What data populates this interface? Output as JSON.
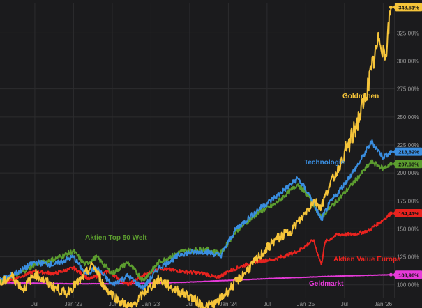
{
  "chart_data": {
    "type": "line",
    "xlabel": "",
    "ylabel": "",
    "ylim": [
      88,
      352
    ],
    "y_ticks": [
      "100,00%",
      "125,00%",
      "150,00%",
      "175,00%",
      "200,00%",
      "225,00%",
      "250,00%",
      "275,00%",
      "300,00%",
      "325,00%"
    ],
    "y_tick_values": [
      100,
      125,
      150,
      175,
      200,
      225,
      250,
      275,
      300,
      325
    ],
    "x_ticks": [
      "Jul",
      "Jan '22",
      "Jul",
      "Jan '23",
      "Jul",
      "Jan '24",
      "Jul",
      "Jan '25",
      "Jul",
      "Jan '26"
    ],
    "x_tick_positions": [
      2021.5,
      2022.0,
      2022.5,
      2023.0,
      2023.5,
      2024.0,
      2024.5,
      2025.0,
      2025.5,
      2026.0
    ],
    "x_range": [
      2021.05,
      2026.15
    ],
    "grid": true,
    "series": [
      {
        "name": "Geldmarkt",
        "color": "#e53ad8",
        "end_label": "108,96%",
        "x": [
          2021.05,
          2021.5,
          2022.0,
          2022.5,
          2023.0,
          2023.5,
          2024.0,
          2024.5,
          2025.0,
          2025.5,
          2026.1
        ],
        "values": [
          102,
          101.5,
          101,
          101,
          101.5,
          102.5,
          104,
          105.5,
          106.8,
          108,
          109
        ]
      },
      {
        "name": "Aktien Value Europa",
        "color": "#e8231f",
        "end_label": "164,41%",
        "x": [
          2021.05,
          2021.3,
          2021.5,
          2021.75,
          2022.0,
          2022.2,
          2022.45,
          2022.7,
          2022.9,
          2023.1,
          2023.4,
          2023.7,
          2023.85,
          2024.0,
          2024.3,
          2024.6,
          2024.9,
          2025.1,
          2025.2,
          2025.25,
          2025.4,
          2025.6,
          2025.8,
          2026.0,
          2026.1
        ],
        "values": [
          102,
          107,
          112,
          110,
          115,
          105,
          112,
          100,
          108,
          115,
          112,
          110,
          106,
          112,
          120,
          123,
          130,
          140,
          118,
          138,
          145,
          145,
          148,
          158,
          164
        ]
      },
      {
        "name": "Aktien Top 50 Welt",
        "color": "#5c9d2f",
        "end_label": "207,63%",
        "x": [
          2021.05,
          2021.3,
          2021.5,
          2021.75,
          2022.0,
          2022.15,
          2022.3,
          2022.5,
          2022.7,
          2022.9,
          2023.1,
          2023.4,
          2023.7,
          2023.9,
          2024.1,
          2024.4,
          2024.6,
          2024.9,
          2025.05,
          2025.2,
          2025.3,
          2025.5,
          2025.7,
          2025.85,
          2026.0,
          2026.1
        ],
        "values": [
          103,
          110,
          118,
          123,
          130,
          118,
          125,
          110,
          120,
          104,
          120,
          130,
          132,
          128,
          148,
          165,
          172,
          190,
          178,
          160,
          168,
          182,
          198,
          210,
          204,
          208
        ]
      },
      {
        "name": "Technologie",
        "color": "#3a8ee0",
        "end_label": "218,82%",
        "x": [
          2021.05,
          2021.3,
          2021.5,
          2021.75,
          2022.0,
          2022.15,
          2022.3,
          2022.5,
          2022.7,
          2022.9,
          2023.1,
          2023.4,
          2023.7,
          2023.9,
          2024.1,
          2024.4,
          2024.6,
          2024.9,
          2025.05,
          2025.2,
          2025.3,
          2025.5,
          2025.7,
          2025.85,
          2026.0,
          2026.1
        ],
        "values": [
          104,
          112,
          120,
          118,
          125,
          110,
          115,
          100,
          108,
          97,
          115,
          128,
          130,
          126,
          150,
          168,
          178,
          195,
          180,
          158,
          172,
          190,
          210,
          228,
          214,
          219
        ]
      },
      {
        "name": "Goldminen",
        "color": "#f5c43a",
        "end_label": "348,61%",
        "x": [
          2021.05,
          2021.2,
          2021.35,
          2021.5,
          2021.7,
          2021.9,
          2022.1,
          2022.25,
          2022.4,
          2022.6,
          2022.75,
          2022.9,
          2023.1,
          2023.3,
          2023.5,
          2023.7,
          2023.85,
          2024.0,
          2024.2,
          2024.4,
          2024.6,
          2024.8,
          2024.95,
          2025.1,
          2025.2,
          2025.3,
          2025.45,
          2025.6,
          2025.75,
          2025.85,
          2025.95,
          2026.03,
          2026.1
        ],
        "values": [
          100,
          108,
          96,
          110,
          100,
          92,
          105,
          118,
          98,
          85,
          80,
          92,
          105,
          96,
          90,
          80,
          84,
          95,
          110,
          125,
          140,
          148,
          160,
          175,
          170,
          188,
          208,
          232,
          262,
          292,
          320,
          305,
          348
        ]
      }
    ]
  },
  "labels": {
    "goldminen": "Goldminen",
    "technologie": "Technologie",
    "top50": "Aktien Top 50 Welt",
    "value_europa": "Aktien Value Europa",
    "geldmarkt": "Geldmarkt"
  },
  "colors": {
    "background": "#1b1b1d",
    "grid": "#2c2c2e",
    "axis_text": "#9a9a9a"
  }
}
